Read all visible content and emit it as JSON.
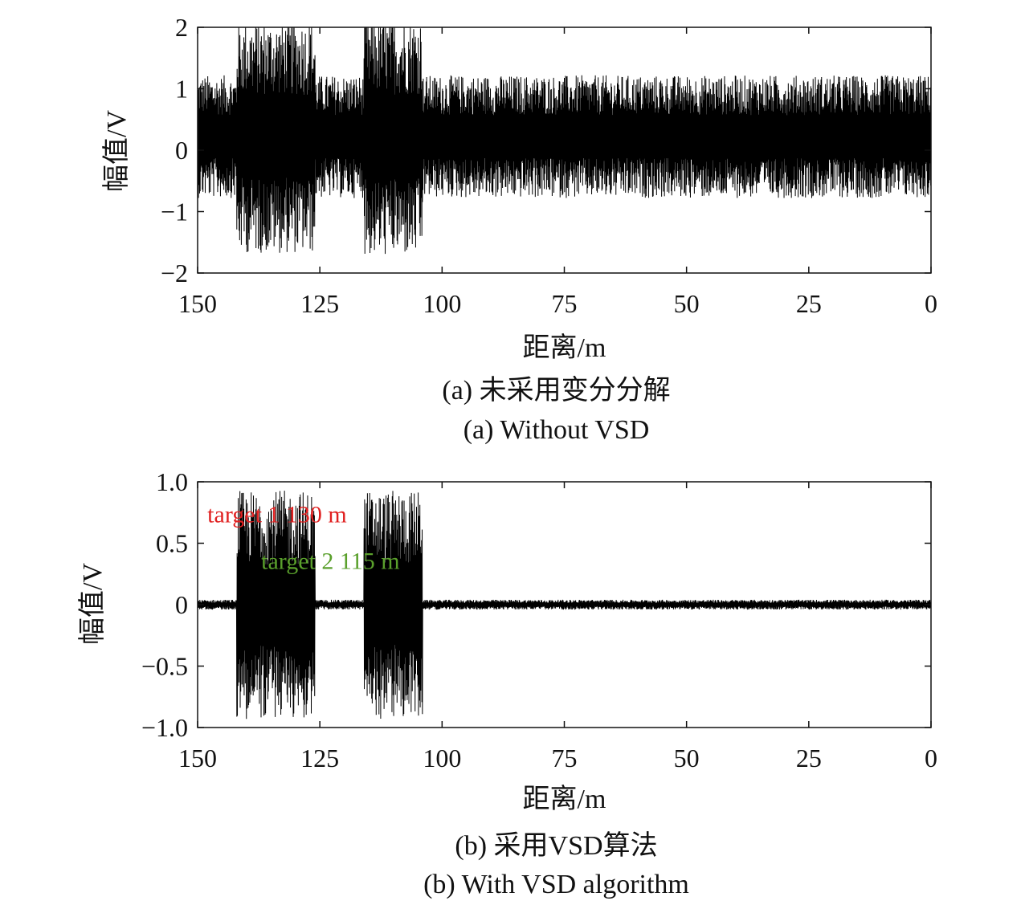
{
  "chart_data": [
    {
      "type": "line",
      "xlabel": "距离/m",
      "ylabel": "幅值/V",
      "xlim": [
        150,
        0
      ],
      "ylim": [
        -2,
        2
      ],
      "x_reversed": true,
      "xticks": [
        150,
        125,
        100,
        75,
        50,
        25,
        0
      ],
      "yticks": [
        "2",
        "1",
        "0",
        "−1",
        "−2"
      ],
      "ytick_values": [
        2,
        1,
        0,
        -1,
        -2
      ],
      "caption_cn": "(a) 未采用变分分解",
      "caption_en": "(a) Without VSD",
      "line_color": "#000000",
      "series": [
        {
          "noise_amplitude": 1.0,
          "bursts": [
            {
              "x_from": 142,
              "x_to": 126,
              "amplitude": 1.9
            },
            {
              "x_from": 116,
              "x_to": 104,
              "amplitude": 1.95
            }
          ]
        }
      ],
      "annotations": []
    },
    {
      "type": "line",
      "xlabel": "距离/m",
      "ylabel": "幅值/V",
      "xlim": [
        150,
        0
      ],
      "ylim": [
        -1,
        1
      ],
      "x_reversed": true,
      "xticks": [
        150,
        125,
        100,
        75,
        50,
        25,
        0
      ],
      "yticks": [
        "1.0",
        "0.5",
        "0",
        "−0.5",
        "−1.0"
      ],
      "ytick_values": [
        1,
        0.5,
        0,
        -0.5,
        -1
      ],
      "caption_cn": "(b) 采用VSD算法",
      "caption_en": "(b) With VSD algorithm",
      "line_color": "#000000",
      "series": [
        {
          "noise_amplitude": 0.04,
          "bursts": [
            {
              "x_from": 142,
              "x_to": 126,
              "amplitude": 0.93
            },
            {
              "x_from": 116,
              "x_to": 104,
              "amplitude": 0.93
            }
          ]
        }
      ],
      "annotations": [
        {
          "text": "target 1 130 m",
          "color": "#e02020",
          "x": 148,
          "y": 0.67
        },
        {
          "text": "target 2 115 m",
          "color": "#5aa02c",
          "x": 137,
          "y": 0.29
        }
      ]
    }
  ]
}
